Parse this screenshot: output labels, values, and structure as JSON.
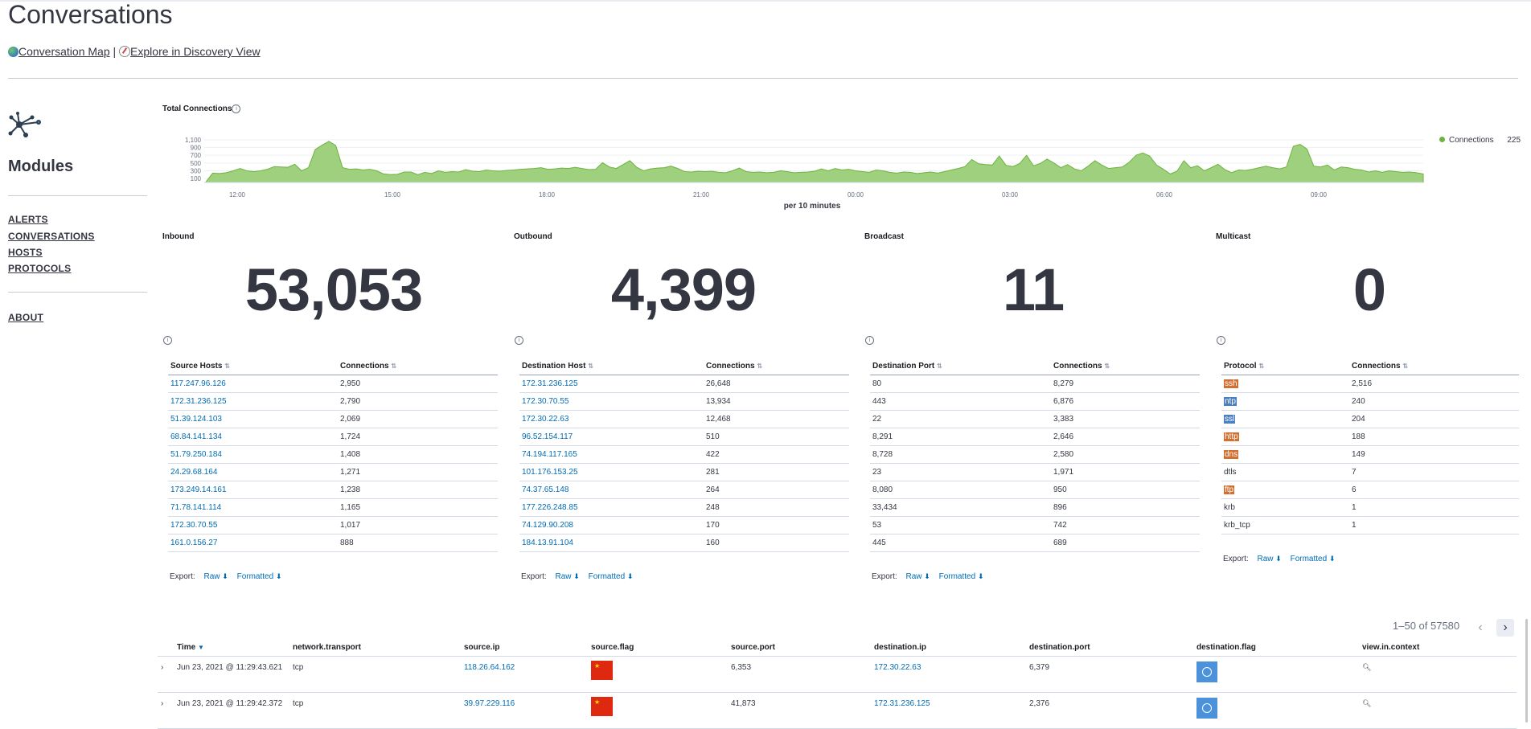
{
  "page": {
    "title": "Conversations"
  },
  "links": {
    "map": "Conversation Map",
    "sep": "|",
    "discover": "Explore in Discovery View"
  },
  "sidebar": {
    "title": "Modules",
    "items": [
      {
        "label": "ALERTS"
      },
      {
        "label": "CONVERSATIONS"
      },
      {
        "label": "HOSTS"
      },
      {
        "label": "PROTOCOLS"
      }
    ],
    "about": "ABOUT"
  },
  "chart": {
    "title": "Total Connections",
    "xlabel": "per 10 minutes",
    "legend": {
      "name": "Connections",
      "value": "225"
    },
    "color": "#6db33f"
  },
  "chart_data": {
    "type": "area",
    "title": "Total Connections",
    "xlabel": "per 10 minutes",
    "ylabel": "",
    "ylim": [
      0,
      1200
    ],
    "yticks": [
      "1,100",
      "900",
      "700",
      "500",
      "300",
      "100"
    ],
    "xticks": [
      "12:00",
      "15:00",
      "18:00",
      "21:00",
      "00:00",
      "03:00",
      "06:00",
      "09:00"
    ],
    "series": [
      {
        "name": "Connections",
        "values": [
          10,
          240,
          230,
          250,
          300,
          360,
          300,
          280,
          300,
          340,
          410,
          400,
          390,
          470,
          300,
          380,
          850,
          960,
          1060,
          950,
          380,
          340,
          350,
          320,
          340,
          300,
          220,
          200,
          210,
          270,
          270,
          200,
          260,
          230,
          300,
          260,
          280,
          270,
          330,
          290,
          280,
          320,
          300,
          290,
          310,
          320,
          340,
          350,
          360,
          380,
          340,
          350,
          370,
          360,
          390,
          360,
          330,
          340,
          510,
          400,
          360,
          460,
          560,
          390,
          300,
          350,
          370,
          380,
          420,
          360,
          280,
          270,
          290,
          280,
          290,
          260,
          250,
          300,
          370,
          280,
          260,
          270,
          250,
          260,
          300,
          280,
          250,
          260,
          270,
          290,
          350,
          300,
          360,
          320,
          340,
          300,
          280,
          260,
          320,
          300,
          260,
          240,
          270,
          260,
          230,
          250,
          270,
          240,
          280,
          320,
          360,
          410,
          590,
          480,
          460,
          450,
          680,
          440,
          410,
          490,
          700,
          430,
          490,
          600,
          500,
          380,
          460,
          350,
          300,
          420,
          560,
          450,
          360,
          380,
          400,
          520,
          700,
          760,
          680,
          450,
          340,
          220,
          290,
          560,
          380,
          430,
          300,
          380,
          470,
          330,
          250,
          320,
          310,
          340,
          380,
          420,
          380,
          350,
          400,
          930,
          980,
          860,
          420,
          400,
          450,
          320,
          400,
          380,
          340,
          320,
          270,
          300,
          260,
          300,
          280,
          260,
          270,
          250,
          220
        ]
      }
    ]
  },
  "metrics": [
    {
      "label": "Inbound",
      "value": "53,053"
    },
    {
      "label": "Outbound",
      "value": "4,399"
    },
    {
      "label": "Broadcast",
      "value": "11"
    },
    {
      "label": "Multicast",
      "value": "0"
    }
  ],
  "tables": {
    "source": {
      "col1": "Source Hosts",
      "col2": "Connections",
      "rows": [
        [
          "117.247.96.126",
          "2,950"
        ],
        [
          "172.31.236.125",
          "2,790"
        ],
        [
          "51.39.124.103",
          "2,069"
        ],
        [
          "68.84.141.134",
          "1,724"
        ],
        [
          "51.79.250.184",
          "1,408"
        ],
        [
          "24.29.68.164",
          "1,271"
        ],
        [
          "173.249.14.161",
          "1,238"
        ],
        [
          "71.78.141.114",
          "1,165"
        ],
        [
          "172.30.70.55",
          "1,017"
        ],
        [
          "161.0.156.27",
          "888"
        ]
      ]
    },
    "dest": {
      "col1": "Destination Host",
      "col2": "Connections",
      "rows": [
        [
          "172.31.236.125",
          "26,648"
        ],
        [
          "172.30.70.55",
          "13,934"
        ],
        [
          "172.30.22.63",
          "12,468"
        ],
        [
          "96.52.154.117",
          "510"
        ],
        [
          "74.194.117.165",
          "422"
        ],
        [
          "101.176.153.25",
          "281"
        ],
        [
          "74.37.65.148",
          "264"
        ],
        [
          "177.226.248.85",
          "248"
        ],
        [
          "74.129.90.208",
          "170"
        ],
        [
          "184.13.91.104",
          "160"
        ]
      ]
    },
    "port": {
      "col1": "Destination Port",
      "col2": "Connections",
      "rows": [
        [
          "80",
          "8,279"
        ],
        [
          "443",
          "6,876"
        ],
        [
          "22",
          "3,383"
        ],
        [
          "8,291",
          "2,646"
        ],
        [
          "8,728",
          "2,580"
        ],
        [
          "23",
          "1,971"
        ],
        [
          "8,080",
          "950"
        ],
        [
          "33,434",
          "896"
        ],
        [
          "53",
          "742"
        ],
        [
          "445",
          "689"
        ]
      ]
    },
    "proto": {
      "col1": "Protocol",
      "col2": "Connections",
      "rows": [
        [
          "ssh",
          "2,516",
          "#d36f31"
        ],
        [
          "ntp",
          "240",
          "#4a7fc1"
        ],
        [
          "ssl",
          "204",
          "#4a7fc1"
        ],
        [
          "http",
          "188",
          "#d36f31"
        ],
        [
          "dns",
          "149",
          "#d36f31"
        ],
        [
          "dtls",
          "7",
          ""
        ],
        [
          "ftp",
          "6",
          "#d36f31"
        ],
        [
          "krb",
          "1",
          ""
        ],
        [
          "krb_tcp",
          "1",
          ""
        ]
      ]
    }
  },
  "export": {
    "label": "Export:",
    "raw": "Raw",
    "formatted": "Formatted"
  },
  "pager": {
    "text": "1–50 of 57580"
  },
  "docs": {
    "columns": [
      "Time",
      "network.transport",
      "source.ip",
      "source.flag",
      "source.port",
      "destination.ip",
      "destination.port",
      "destination.flag",
      "view.in.context"
    ],
    "rows": [
      {
        "time": "Jun 23, 2021 @ 11:29:43.621",
        "transport": "tcp",
        "src_ip": "118.26.64.162",
        "src_port": "6,353",
        "dst_ip": "172.30.22.63",
        "dst_port": "6,379"
      },
      {
        "time": "Jun 23, 2021 @ 11:29:42.372",
        "transport": "tcp",
        "src_ip": "39.97.229.116",
        "src_port": "41,873",
        "dst_ip": "172.31.236.125",
        "dst_port": "2,376"
      }
    ]
  }
}
